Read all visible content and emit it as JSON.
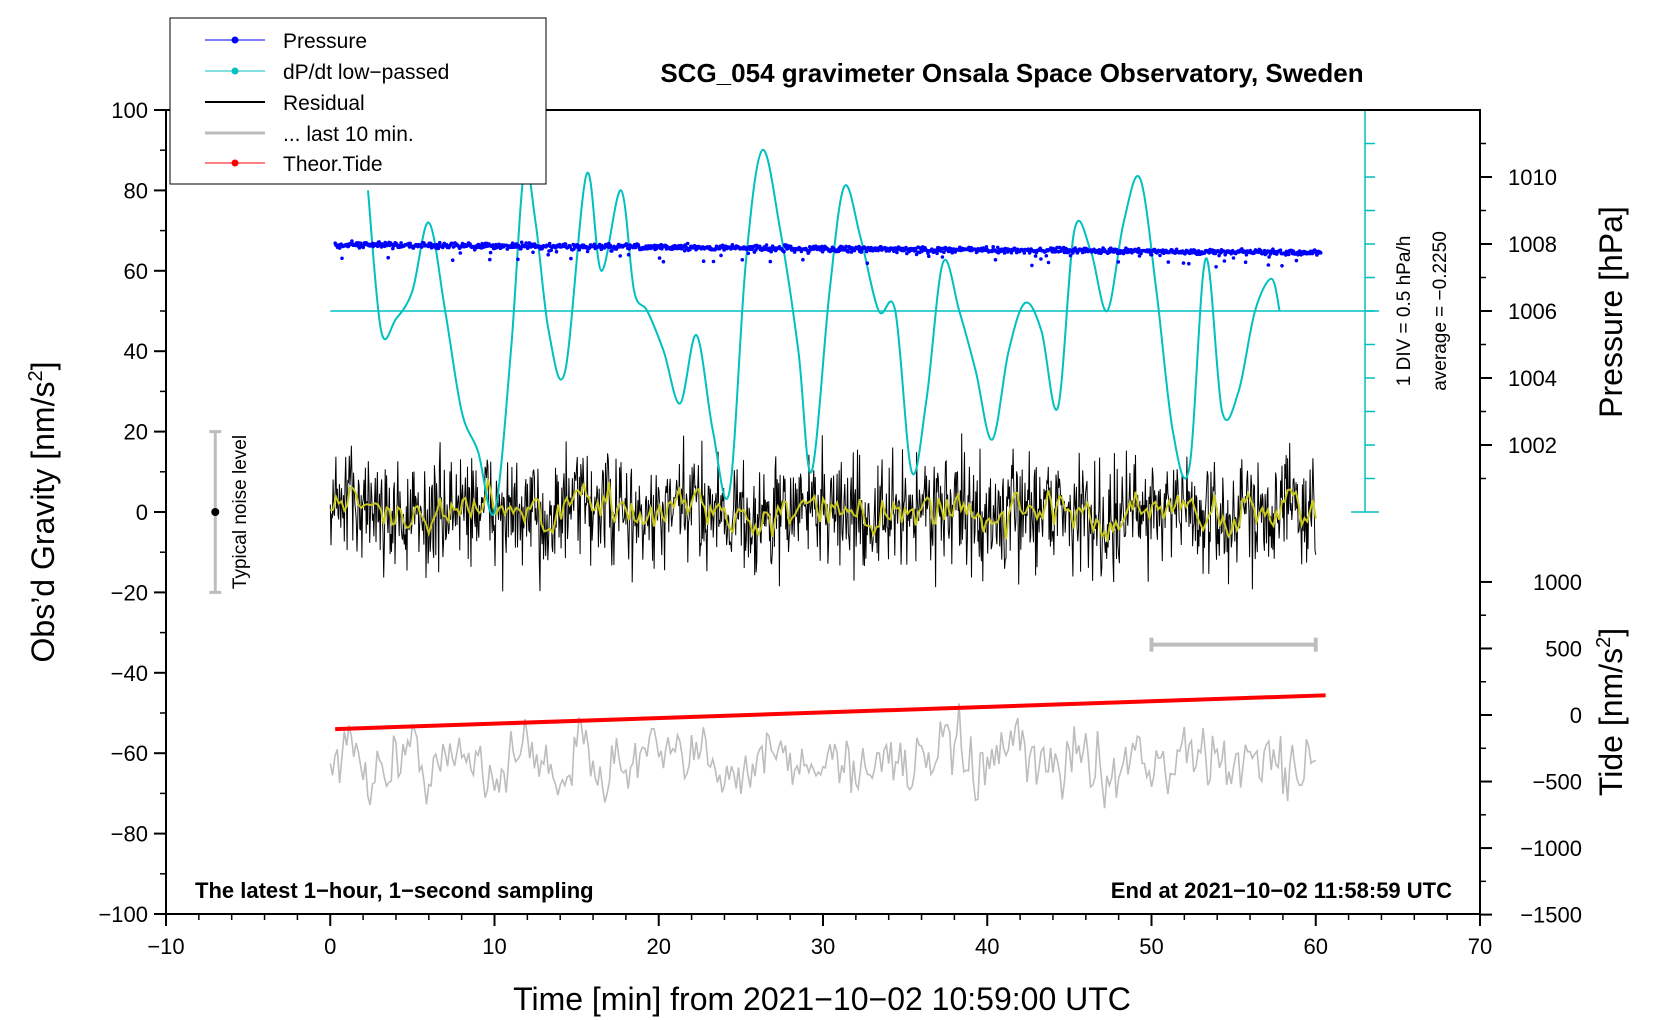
{
  "chart_data": {
    "type": "line",
    "title": "SCG_054 gravimeter Onsala Space Observatory, Sweden",
    "xlabel": "Time [min] from 2021−10−02 10:59:00 UTC",
    "ylabel": "Obs’d Gravity [nm/s",
    "ylabel_sup": "2",
    "ylabel_end": "]",
    "xlim": [
      -10,
      70
    ],
    "ylim": [
      -100,
      100
    ],
    "x_ticks": [
      -10,
      0,
      10,
      20,
      30,
      40,
      50,
      60,
      70
    ],
    "x_tick_labels": [
      "−10",
      "0",
      "10",
      "20",
      "30",
      "40",
      "50",
      "60",
      "70"
    ],
    "y_ticks": [
      -100,
      -80,
      -60,
      -40,
      -20,
      0,
      20,
      40,
      60,
      80,
      100
    ],
    "y_tick_labels": [
      "−100",
      "−80",
      "−60",
      "−40",
      "−20",
      "0",
      "20",
      "40",
      "60",
      "80",
      "100"
    ],
    "pressure_axis": {
      "label": "Pressure [hPa]",
      "tick_values": [
        1002,
        1004,
        1006,
        1008,
        1010
      ],
      "tick_labels": [
        "1002",
        "1004",
        "1006",
        "1008",
        "1010"
      ],
      "gravity_at_1006": 50,
      "gravity_per_hPa": 8.333
    },
    "tide_axis": {
      "label": "Tide [nm/s",
      "label_sup": "2",
      "label_end": "]",
      "tick_values": [
        -1500,
        -1000,
        -500,
        0,
        500,
        1000
      ],
      "tick_labels": [
        "−1500",
        "−1000",
        "−500",
        "0",
        "500",
        "1000"
      ],
      "gravity_at_0": -50.5,
      "gravity_per_unit": 0.0331
    },
    "legend": [
      {
        "label": "Pressure",
        "color": "#0000ff",
        "marker": true
      },
      {
        "label": "dP/dt low−passed",
        "color": "#00c0c0",
        "marker": true
      },
      {
        "label": "Residual",
        "color": "#000000",
        "marker": false
      },
      {
        "label": "... last 10 min.",
        "color": "#bdbdbd",
        "marker": false
      },
      {
        "label": "Theor.Tide",
        "color": "#ff0000",
        "marker": true
      }
    ],
    "series": [
      {
        "name": "Pressure",
        "color": "#0000ff",
        "style": "dots",
        "start_value": 66.5,
        "end_value": 64.5,
        "x_range": [
          0.3,
          60.3
        ]
      },
      {
        "name": "dP/dt low−passed",
        "color": "#00c0c0",
        "style": "line",
        "x": [
          2.3,
          3.1,
          4,
          5,
          6,
          7,
          8,
          9,
          10,
          11,
          11.8,
          12.5,
          13.3,
          14.3,
          15.6,
          16.5,
          17.7,
          18.5,
          19.3,
          20.3,
          21.3,
          22.3,
          23.3,
          24.3,
          25.3,
          26.3,
          27.4,
          28.5,
          29.3,
          30.4,
          31.3,
          32.3,
          33.4,
          34.4,
          35.4,
          36.3,
          37.3,
          38.3,
          39.3,
          40.3,
          41.3,
          42.3,
          43.3,
          44.3,
          45.3,
          46.3,
          47.3,
          48.3,
          49.3,
          50.3,
          51.3,
          52.3,
          53.3,
          54.3,
          55.3,
          56.3,
          57.3,
          57.8
        ],
        "values": [
          80,
          45,
          48,
          55,
          72,
          50,
          25,
          15,
          0,
          40,
          85,
          72,
          45,
          35,
          84,
          60,
          80,
          55,
          50,
          40,
          27,
          44,
          20,
          5,
          62,
          90,
          70,
          40,
          10,
          55,
          81,
          68,
          50,
          50,
          10,
          28,
          62,
          50,
          35,
          18,
          40,
          52,
          45,
          26,
          70,
          65,
          50,
          72,
          83,
          55,
          20,
          11,
          63,
          25,
          30,
          50,
          58,
          50
        ]
      },
      {
        "name": "Residual",
        "color": "#000000",
        "style": "line",
        "x_range": [
          0,
          60
        ],
        "mean": 0,
        "spread": 7
      },
      {
        "name": "Smoothed residual",
        "color": "#c8c81e",
        "style": "line",
        "x_range": [
          0,
          60
        ],
        "mean": 0,
        "spread": 4
      },
      {
        "name": "... last 10 min.",
        "color": "#bdbdbd",
        "style": "line",
        "x_range": [
          0,
          60
        ],
        "mean": -62,
        "spread": 6
      },
      {
        "name": "Theor.Tide",
        "color": "#ff0000",
        "style": "line",
        "x": [
          0.3,
          60.6
        ],
        "values": [
          -54,
          -45.6
        ]
      }
    ],
    "dpdt_scale": {
      "line1": "1 DIV = 0.5 hPa/h",
      "line2": "average = −0.2250",
      "baseline_y": 50,
      "x": 63,
      "top_y": 100,
      "bottom_y": 0,
      "div_step_y": 8.333
    },
    "noise_bar": {
      "label": "Typical noise level",
      "x": -7,
      "low": -20,
      "high": 20,
      "center": 0
    },
    "ten_minute_bar": {
      "x_start": 50,
      "x_end": 60,
      "y": -33
    },
    "annotation_left": "The latest 1−hour, 1−second sampling",
    "annotation_right": "End at 2021−10−02 11:58:59 UTC"
  }
}
